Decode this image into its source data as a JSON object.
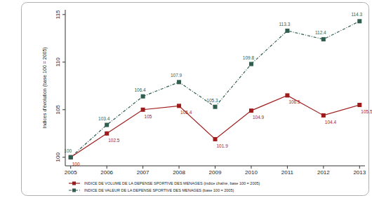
{
  "chart_data": {
    "type": "line",
    "y_label": "Indices d'évolution (base 100 = 2005)",
    "x": [
      2005,
      2006,
      2007,
      2008,
      2009,
      2010,
      2011,
      2012,
      2013
    ],
    "series": [
      {
        "name": "INDICE DE VOLUME DE LA DEPENSE SPORTIVE DES MENAGES (indice chaîné, base 100 = 2005)",
        "color": "#9e1b1b",
        "marker": "square",
        "line_style": "solid",
        "values": [
          100,
          102.5,
          105,
          105.4,
          101.9,
          104.9,
          106.5,
          104.4,
          105.5
        ]
      },
      {
        "name": "INDICE DE VALEUR DE LA DEPENSE SPORTIVE DES MENAGES (base 100 = 2005)",
        "color": "#2f5d4f",
        "marker": "square",
        "line_style": "dashed",
        "values": [
          100,
          103.4,
          106.4,
          107.9,
          105.3,
          109.8,
          113.3,
          112.4,
          114.3
        ]
      }
    ],
    "xlim": [
      2004.85,
      2013.15
    ],
    "xticks": [
      2005,
      2006,
      2007,
      2008,
      2009,
      2010,
      2011,
      2012,
      2013
    ],
    "ylim": [
      99.1,
      115.5
    ],
    "yticks": [
      100,
      105,
      110,
      115
    ],
    "grid": false,
    "data_labels": true,
    "legend": "bottom"
  }
}
